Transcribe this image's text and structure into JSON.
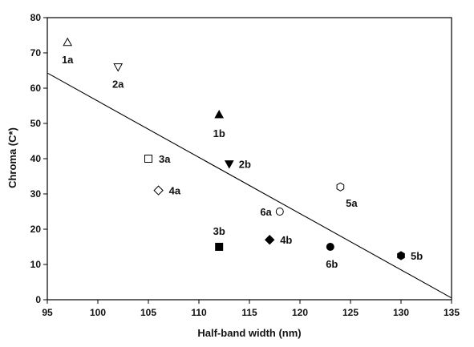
{
  "chart_data": {
    "type": "scatter",
    "title": "",
    "xlabel": "Half-band width (nm)",
    "ylabel": "Chroma (C*)",
    "xlim": [
      95,
      135
    ],
    "ylim": [
      0,
      80
    ],
    "xticks": [
      "95",
      "100",
      "105",
      "110",
      "115",
      "120",
      "125",
      "130",
      "135"
    ],
    "yticks": [
      "0",
      "10",
      "20",
      "30",
      "40",
      "50",
      "60",
      "70",
      "80"
    ],
    "grid": false,
    "points": [
      {
        "label": "1a",
        "x": 97,
        "y": 73,
        "marker": "triangle-up",
        "filled": false
      },
      {
        "label": "2a",
        "x": 102,
        "y": 66,
        "marker": "triangle-down",
        "filled": false
      },
      {
        "label": "1b",
        "x": 112,
        "y": 52.5,
        "marker": "triangle-up",
        "filled": true
      },
      {
        "label": "2b",
        "x": 113,
        "y": 38.5,
        "marker": "triangle-down",
        "filled": true
      },
      {
        "label": "3a",
        "x": 105,
        "y": 40,
        "marker": "square",
        "filled": false
      },
      {
        "label": "4a",
        "x": 106,
        "y": 31,
        "marker": "diamond",
        "filled": false
      },
      {
        "label": "5a",
        "x": 124,
        "y": 32,
        "marker": "hexagon",
        "filled": false
      },
      {
        "label": "6a",
        "x": 118,
        "y": 25,
        "marker": "circle",
        "filled": false
      },
      {
        "label": "3b",
        "x": 112,
        "y": 15,
        "marker": "square",
        "filled": true
      },
      {
        "label": "4b",
        "x": 117,
        "y": 17,
        "marker": "diamond",
        "filled": true
      },
      {
        "label": "6b",
        "x": 123,
        "y": 15,
        "marker": "circle",
        "filled": true
      },
      {
        "label": "5b",
        "x": 130,
        "y": 12.5,
        "marker": "hexagon",
        "filled": true
      }
    ],
    "trendline": {
      "x": [
        95,
        135
      ],
      "y": [
        64.3,
        0.5
      ]
    }
  }
}
